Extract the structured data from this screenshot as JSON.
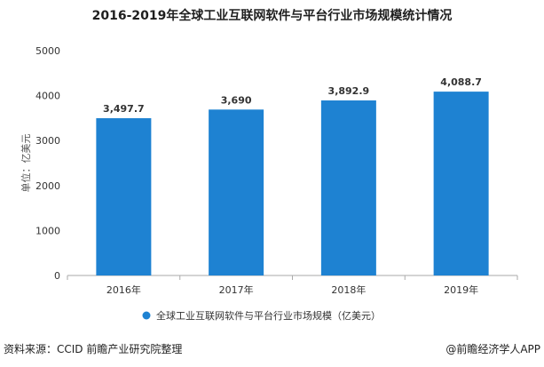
{
  "chart_data": {
    "type": "bar",
    "title": "2016-2019年全球工业互联网软件与平台行业市场规模统计情况",
    "categories": [
      "2016年",
      "2017年",
      "2018年",
      "2019年"
    ],
    "series": [
      {
        "name": "全球工业互联网软件与平台行业市场规模（亿美元）",
        "values": [
          3497.7,
          3690,
          3892.9,
          4088.7
        ],
        "labels": [
          "3,497.7",
          "3,690",
          "3,892.9",
          "4,088.7"
        ]
      }
    ],
    "ylabel": "单位：亿美元",
    "xlabel": "",
    "ylim": [
      0,
      5000
    ],
    "yticks": [
      "0",
      "1000",
      "2000",
      "3000",
      "4000",
      "5000"
    ],
    "grid": false,
    "legend_position": "bottom",
    "colors": {
      "bar": "#1e82d2",
      "axis": "#aaaaaa",
      "text": "#333333"
    }
  },
  "source": "资料来源：CCID 前瞻产业研究院整理",
  "credit": "@前瞻经济学人APP"
}
